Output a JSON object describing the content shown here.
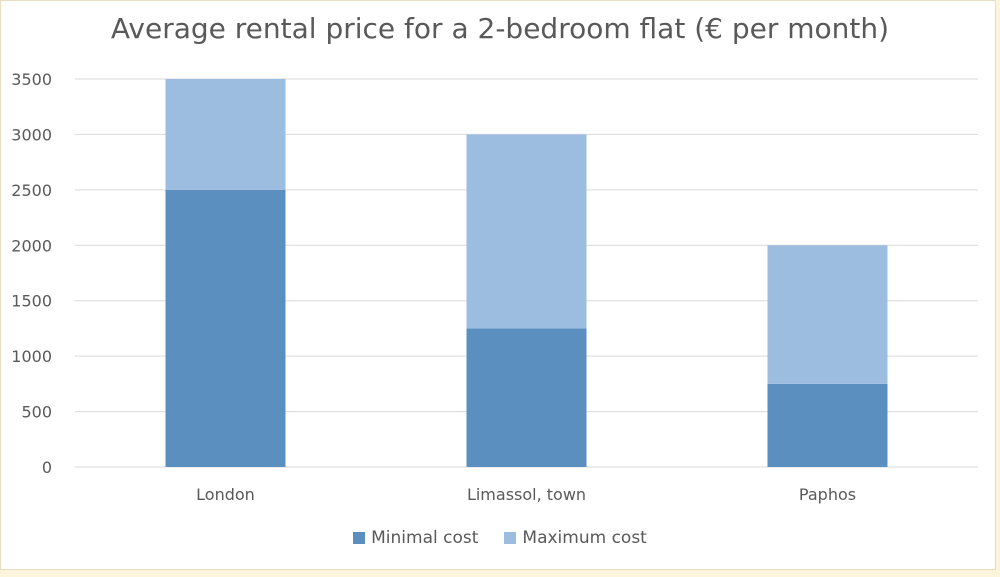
{
  "chart_data": {
    "type": "bar",
    "stacked": true,
    "title": "Average rental price for a 2-bedroom flat (€ per month)",
    "xlabel": "",
    "ylabel": "",
    "categories": [
      "London",
      "Limassol, town",
      "Paphos"
    ],
    "series": [
      {
        "name": "Minimal cost",
        "values": [
          2500,
          1250,
          750
        ],
        "color": "#5b8fc0"
      },
      {
        "name": "Maximum cost",
        "values": [
          1000,
          1750,
          1250
        ],
        "color": "#9cbce0"
      }
    ],
    "ylim": [
      0,
      3500
    ],
    "yticks": [
      "0",
      "500",
      "1000",
      "1500",
      "2000",
      "2500",
      "3000",
      "3500"
    ],
    "grid": true,
    "legend_position": "bottom"
  }
}
